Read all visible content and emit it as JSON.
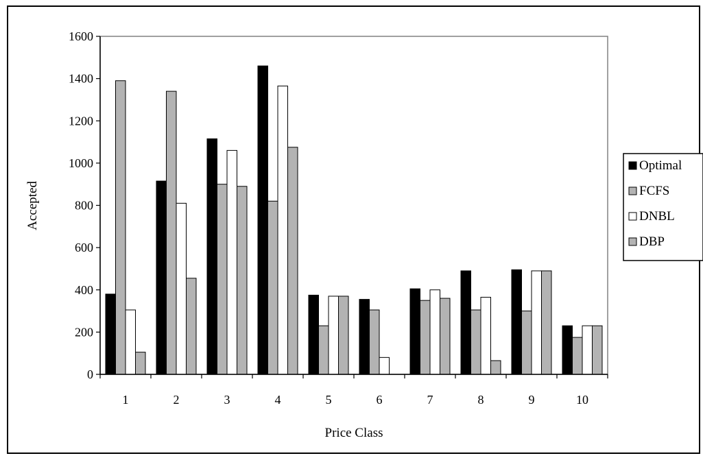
{
  "chart_data": {
    "type": "bar",
    "title": "",
    "xlabel": "Price Class",
    "ylabel": "Accepted",
    "categories": [
      "1",
      "2",
      "3",
      "4",
      "5",
      "6",
      "7",
      "8",
      "9",
      "10"
    ],
    "ylim": [
      0,
      1600
    ],
    "yticks": [
      0,
      200,
      400,
      600,
      800,
      1000,
      1200,
      1400,
      1600
    ],
    "grid": false,
    "legend_position": "right",
    "series": [
      {
        "name": "Optimal",
        "color": "#000000",
        "values": [
          380,
          915,
          1115,
          1460,
          375,
          355,
          405,
          490,
          495,
          230
        ]
      },
      {
        "name": "FCFS",
        "color": "#b3b3b3",
        "values": [
          1390,
          1340,
          900,
          820,
          230,
          305,
          350,
          305,
          300,
          175
        ]
      },
      {
        "name": "DNBL",
        "color": "#ffffff",
        "values": [
          305,
          810,
          1060,
          1365,
          370,
          80,
          400,
          365,
          490,
          230
        ]
      },
      {
        "name": "DBP",
        "color": "#b3b3b3",
        "values": [
          105,
          455,
          890,
          1075,
          370,
          0,
          360,
          65,
          490,
          230
        ]
      }
    ]
  }
}
